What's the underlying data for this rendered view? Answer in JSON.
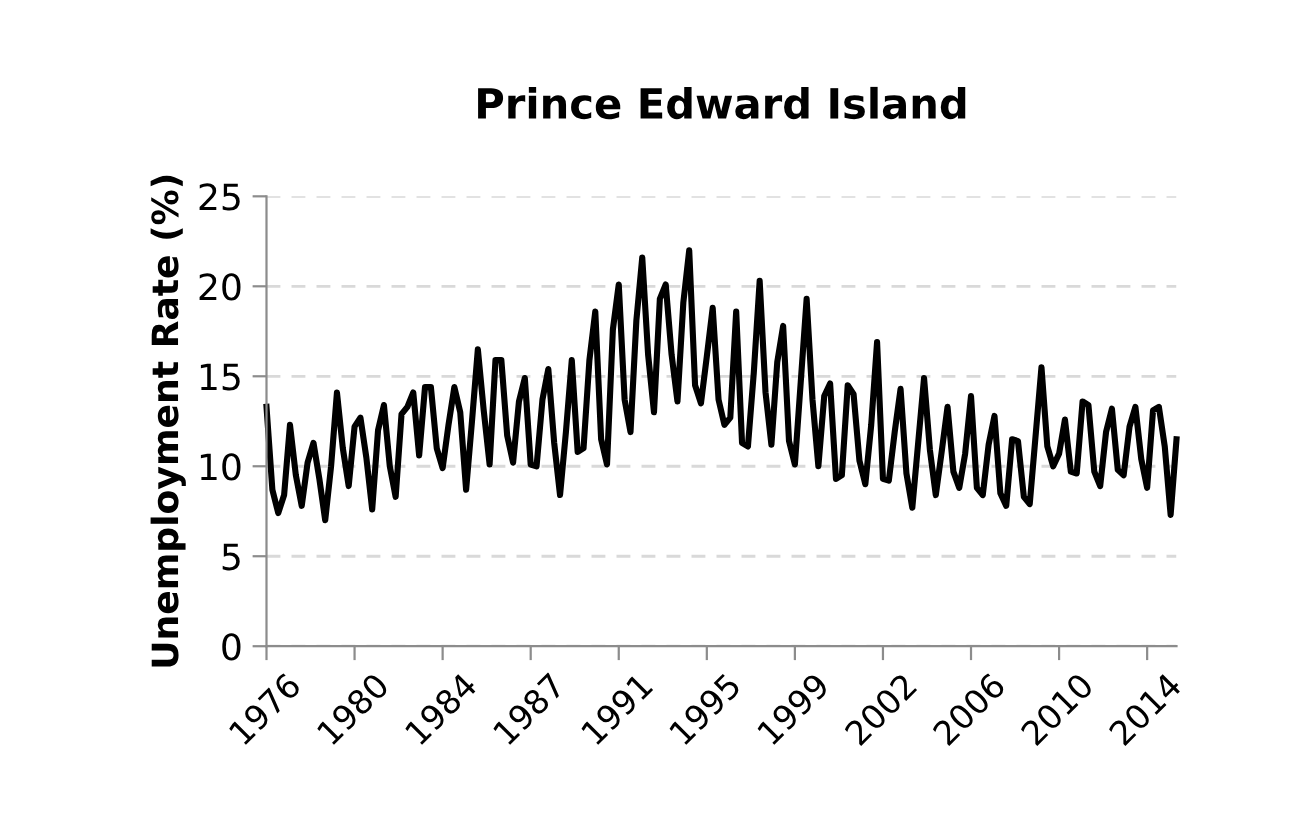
{
  "chart_data": {
    "type": "line",
    "title": "Prince Edward Island",
    "ylabel": "Unemployment Rate (%)",
    "categories": [
      "1976",
      null,
      null,
      null,
      null,
      null,
      null,
      null,
      null,
      null,
      null,
      null,
      null,
      null,
      null,
      "1980",
      null,
      null,
      null,
      null,
      null,
      null,
      null,
      null,
      null,
      null,
      null,
      null,
      null,
      null,
      "1984",
      null,
      null,
      null,
      null,
      null,
      null,
      null,
      null,
      null,
      null,
      null,
      null,
      null,
      null,
      "1987",
      null,
      null,
      null,
      null,
      null,
      null,
      null,
      null,
      null,
      null,
      null,
      null,
      null,
      null,
      "1991",
      null,
      null,
      null,
      null,
      null,
      null,
      null,
      null,
      null,
      null,
      null,
      null,
      null,
      null,
      "1995",
      null,
      null,
      null,
      null,
      null,
      null,
      null,
      null,
      null,
      null,
      null,
      null,
      null,
      null,
      "1999",
      null,
      null,
      null,
      null,
      null,
      null,
      null,
      null,
      null,
      null,
      null,
      null,
      null,
      null,
      "2002",
      null,
      null,
      null,
      null,
      null,
      null,
      null,
      null,
      null,
      null,
      null,
      null,
      null,
      null,
      "2006",
      null,
      null,
      null,
      null,
      null,
      null,
      null,
      null,
      null,
      null,
      null,
      null,
      null,
      null,
      "2010",
      null,
      null,
      null,
      null,
      null,
      null,
      null,
      null,
      null,
      null,
      null,
      null,
      null,
      null,
      "2014",
      null,
      null,
      null,
      null,
      null
    ],
    "series": [
      {
        "color": "#000000",
        "values": [
          13.3,
          8.7,
          7.4,
          8.4,
          12.3,
          9.5,
          7.8,
          10.2,
          11.3,
          9.3,
          7.0,
          10.0,
          14.1,
          11.0,
          8.9,
          12.2,
          12.7,
          10.5,
          7.6,
          12.0,
          13.4,
          10.0,
          8.3,
          12.9,
          13.3,
          14.1,
          10.6,
          14.4,
          14.4,
          11.0,
          9.9,
          12.3,
          14.4,
          13.0,
          8.7,
          12.5,
          16.5,
          13.1,
          10.1,
          15.9,
          15.9,
          11.7,
          10.2,
          13.6,
          14.9,
          10.1,
          10.0,
          13.7,
          15.4,
          11.3,
          8.4,
          11.9,
          15.9,
          10.8,
          11.0,
          15.9,
          18.6,
          11.5,
          10.1,
          17.6,
          20.1,
          13.7,
          11.9,
          18.1,
          21.6,
          16.2,
          13.0,
          19.3,
          20.1,
          16.2,
          13.6,
          19.1,
          22.0,
          14.5,
          13.5,
          16.1,
          18.8,
          13.7,
          12.3,
          12.7,
          18.6,
          11.3,
          11.1,
          15.2,
          20.3,
          14.1,
          11.2,
          15.8,
          17.8,
          11.4,
          10.1,
          14.7,
          19.3,
          13.7,
          10.0,
          13.9,
          14.6,
          9.3,
          9.5,
          14.5,
          14.0,
          10.3,
          9.0,
          12.3,
          16.9,
          9.3,
          9.2,
          11.9,
          14.3,
          9.6,
          7.7,
          11.3,
          14.9,
          10.9,
          8.4,
          10.8,
          13.3,
          9.7,
          8.8,
          10.7,
          13.9,
          8.8,
          8.4,
          11.2,
          12.8,
          8.5,
          7.8,
          11.5,
          11.4,
          8.3,
          7.9,
          11.7,
          15.5,
          11.1,
          10.0,
          10.7,
          12.6,
          9.7,
          9.6,
          13.6,
          13.4,
          9.7,
          8.9,
          11.9,
          13.2,
          9.8,
          9.5,
          12.2,
          13.3,
          10.4,
          8.8,
          13.1,
          13.3,
          11.1,
          7.3,
          11.5
        ]
      }
    ],
    "ylim": [
      0,
      25
    ],
    "yticks": [
      0,
      5,
      10,
      15,
      20,
      25
    ],
    "grid": "y",
    "line_style": "solid",
    "marker": "none"
  }
}
